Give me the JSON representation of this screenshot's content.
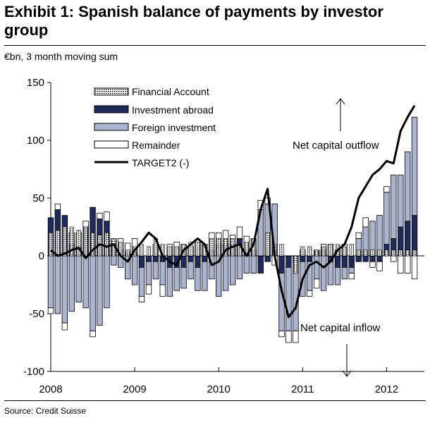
{
  "header": {
    "title": "Exhibit 1: Spanish balance of payments by investor group",
    "subtitle": "€bn, 3 month moving sum"
  },
  "footer": {
    "source": "Source: Credit Suisse"
  },
  "colors": {
    "financial_account": "#ffffff",
    "investment_abroad": "#1f2a5c",
    "foreign_investment": "#aab3d0",
    "remainder": "#ffffff",
    "target2": "#000000"
  },
  "chart_data": {
    "type": "bar",
    "stacked": true,
    "title": "Exhibit 1: Spanish balance of payments by investor group",
    "ylabel": "€bn, 3 month moving sum",
    "ylim": [
      -100,
      150
    ],
    "yticks": [
      150,
      100,
      50,
      0,
      -50,
      -100
    ],
    "xlim": [
      2008.0,
      2012.45
    ],
    "xticks": [
      "2008",
      "2009",
      "2010",
      "2011",
      "2012"
    ],
    "legend": {
      "position": "top-center",
      "entries": [
        "Financial Account",
        "Investment abroad",
        "Foreign investment",
        "Remainder",
        "TARGET2 (-)"
      ]
    },
    "annotations": [
      "Net capital outflow",
      "Net capital inflow"
    ],
    "x": [
      2008.0,
      2008.083,
      2008.167,
      2008.25,
      2008.333,
      2008.417,
      2008.5,
      2008.583,
      2008.667,
      2008.75,
      2008.833,
      2008.917,
      2009.0,
      2009.083,
      2009.167,
      2009.25,
      2009.333,
      2009.417,
      2009.5,
      2009.583,
      2009.667,
      2009.75,
      2009.833,
      2009.917,
      2010.0,
      2010.083,
      2010.167,
      2010.25,
      2010.333,
      2010.417,
      2010.5,
      2010.583,
      2010.667,
      2010.75,
      2010.833,
      2010.917,
      2011.0,
      2011.083,
      2011.167,
      2011.25,
      2011.333,
      2011.417,
      2011.5,
      2011.583,
      2011.667,
      2011.75,
      2011.833,
      2011.917,
      2012.0,
      2012.083,
      2012.167,
      2012.25,
      2012.333
    ],
    "series": [
      {
        "name": "Investment abroad",
        "values": [
          33,
          40,
          35,
          10,
          8,
          25,
          42,
          32,
          30,
          10,
          5,
          3,
          3,
          -10,
          -5,
          -5,
          -5,
          -10,
          -10,
          -10,
          -5,
          -10,
          -5,
          5,
          10,
          10,
          10,
          15,
          5,
          5,
          -15,
          -5,
          5,
          -15,
          -10,
          -5,
          -5,
          -5,
          5,
          5,
          -5,
          -10,
          -10,
          -10,
          -5,
          -5,
          -5,
          -5,
          10,
          15,
          25,
          30,
          35
        ]
      },
      {
        "name": "Foreign investment",
        "values": [
          -45,
          -50,
          -58,
          -48,
          -40,
          -45,
          -65,
          -60,
          -45,
          -8,
          -10,
          -20,
          -25,
          -25,
          -20,
          -15,
          -20,
          -25,
          -20,
          -18,
          -15,
          -20,
          -25,
          -20,
          -35,
          -30,
          -25,
          -20,
          -15,
          -15,
          40,
          45,
          40,
          -50,
          -55,
          -60,
          -30,
          -25,
          -20,
          -30,
          -20,
          -15,
          -10,
          -5,
          15,
          25,
          30,
          35,
          45,
          55,
          45,
          60,
          85
        ]
      },
      {
        "name": "Financial Account",
        "values": [
          20,
          22,
          25,
          25,
          22,
          25,
          20,
          18,
          20,
          14,
          12,
          5,
          8,
          10,
          8,
          15,
          10,
          8,
          8,
          10,
          12,
          12,
          10,
          15,
          15,
          15,
          15,
          10,
          12,
          15,
          0,
          20,
          10,
          10,
          0,
          -15,
          8,
          8,
          5,
          8,
          10,
          10,
          8,
          10,
          5,
          5,
          5,
          5,
          5,
          5,
          5,
          5,
          5
        ]
      },
      {
        "name": "Remainder",
        "values": [
          -5,
          5,
          -6,
          10,
          12,
          5,
          -5,
          5,
          8,
          5,
          10,
          8,
          12,
          -5,
          -8,
          10,
          -10,
          10,
          12,
          10,
          8,
          12,
          10,
          15,
          10,
          12,
          8,
          10,
          12,
          10,
          8,
          5,
          -8,
          -5,
          -10,
          -10,
          5,
          -5,
          -8,
          5,
          10,
          5,
          10,
          -5,
          5,
          8,
          -5,
          -8,
          5,
          -5,
          -15,
          -15,
          -20
        ]
      },
      {
        "name": "TARGET2 (-)",
        "type": "line",
        "values": [
          5,
          0,
          2,
          5,
          7,
          -2,
          5,
          10,
          8,
          10,
          0,
          -5,
          5,
          12,
          20,
          15,
          0,
          -5,
          -8,
          5,
          10,
          15,
          10,
          -8,
          -5,
          5,
          8,
          10,
          0,
          10,
          40,
          58,
          0,
          -30,
          -53,
          -45,
          -20,
          -8,
          -5,
          -10,
          -5,
          5,
          10,
          25,
          50,
          60,
          70,
          75,
          82,
          80,
          108,
          120,
          130
        ]
      }
    ]
  }
}
